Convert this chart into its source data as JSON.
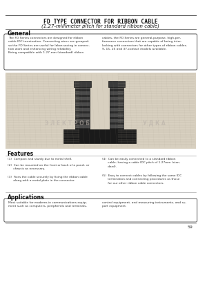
{
  "bg_color": "#ffffff",
  "page_bg": "#e8e4de",
  "title_line1": "FD TYPE CONNECTOR FOR RIBBON CABLE",
  "title_line2": "(1.27-millimeter pitch for standard ribbon cable)",
  "general_title": "General",
  "general_text_left": "The FD Series connectors are designed for ribbon\ncable IDC termination. Connecting wires are grouped,\nso the FD Series are useful for labor-saving in connec-\ntion work and enhancing wiring reliability.\nBeing compatible with 1.27-mm (standard) ribbon",
  "general_text_right": "cables, the FD Series are general-purpose, high-per-\nformance connectors that are capable of being inter-\nlocking with connectors for other types of ribbon cables.\n9, 15, 25 and 37-contact models available.",
  "features_title": "Features",
  "features_items": [
    "(1)  Compact and sturdy due to metal shell.",
    "(2)  Can be mounted on the front or back of a panel, or\n      chassis as necessary.",
    "(3)  Fixes the cable securely by fixing the ribbon cable\n      along with a metal plate in the connector."
  ],
  "features_items_right": [
    "(4)  Can be easily connected to a standard ribbon\n      cable, having a cable IDC pitch of 1.27mm (stan-\n      dard).",
    "(5)  Easy to connect cables by following the same IDC\n      termination and connecting procedures as those\n      for our other ribbon cable connectors."
  ],
  "applications_title": "Applications",
  "applications_text_left": "Most suitable for modems in communications equip-\nment such as computers, peripherals and terminals,",
  "applications_text_right": "control equipment, and measuring instruments, and su-\nport equipment.",
  "page_number": "59"
}
